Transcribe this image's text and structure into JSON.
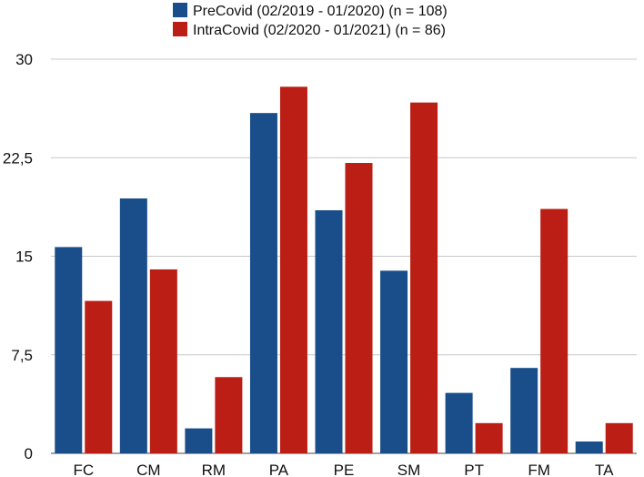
{
  "chart_data": {
    "type": "bar",
    "categories": [
      "FC",
      "CM",
      "RM",
      "PA",
      "PE",
      "SM",
      "PT",
      "FM",
      "TA"
    ],
    "series": [
      {
        "name": "PreCovid (02/2019 - 01/2020) (n = 108)",
        "color": "#1a4e8a",
        "values": [
          15.7,
          19.4,
          1.9,
          25.9,
          18.5,
          13.9,
          4.6,
          6.5,
          0.9
        ]
      },
      {
        "name": "IntraCovid (02/2020 - 01/2021) (n = 86)",
        "color": "#bb1e14",
        "values": [
          11.6,
          14.0,
          5.8,
          27.9,
          22.1,
          26.7,
          2.3,
          18.6,
          2.3
        ]
      }
    ],
    "yticks": [
      "0",
      "7,5",
      "15",
      "22,5",
      "30"
    ],
    "ylim": [
      0,
      30
    ],
    "grid": true,
    "legend": "top-center"
  }
}
